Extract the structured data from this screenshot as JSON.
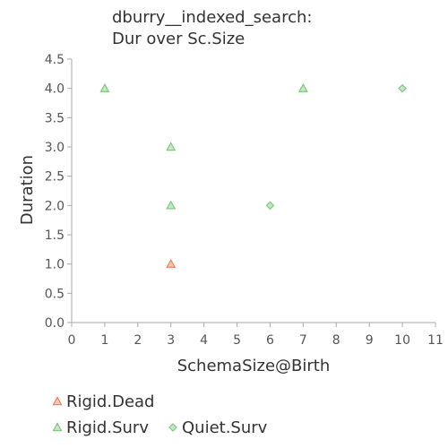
{
  "chart_data": {
    "type": "scatter",
    "title": [
      "dburry__indexed_search:",
      "Dur over Sc.Size"
    ],
    "xlabel": "SchemaSize@Birth",
    "ylabel": "Duration",
    "xlim": [
      0,
      11
    ],
    "ylim": [
      0,
      4.5
    ],
    "xticks": [
      "0",
      "1",
      "2",
      "3",
      "4",
      "5",
      "6",
      "7",
      "8",
      "9",
      "10",
      "11"
    ],
    "yticks": [
      "0.0",
      "0.5",
      "1.0",
      "1.5",
      "2.0",
      "2.5",
      "3.0",
      "3.5",
      "4.0",
      "4.5"
    ],
    "legend_position": "bottom",
    "series": [
      {
        "name": "Rigid.Dead",
        "marker": "triangle",
        "color": "#f08060",
        "points": [
          [
            3,
            1.0
          ]
        ]
      },
      {
        "name": "Rigid.Surv",
        "marker": "triangle",
        "color": "#80c880",
        "points": [
          [
            1,
            4.0
          ],
          [
            3,
            3.0
          ],
          [
            3,
            2.0
          ],
          [
            7,
            4.0
          ]
        ]
      },
      {
        "name": "Quiet.Surv",
        "marker": "diamond",
        "color": "#80c880",
        "points": [
          [
            6,
            2.0
          ],
          [
            10,
            4.0
          ]
        ]
      }
    ]
  }
}
